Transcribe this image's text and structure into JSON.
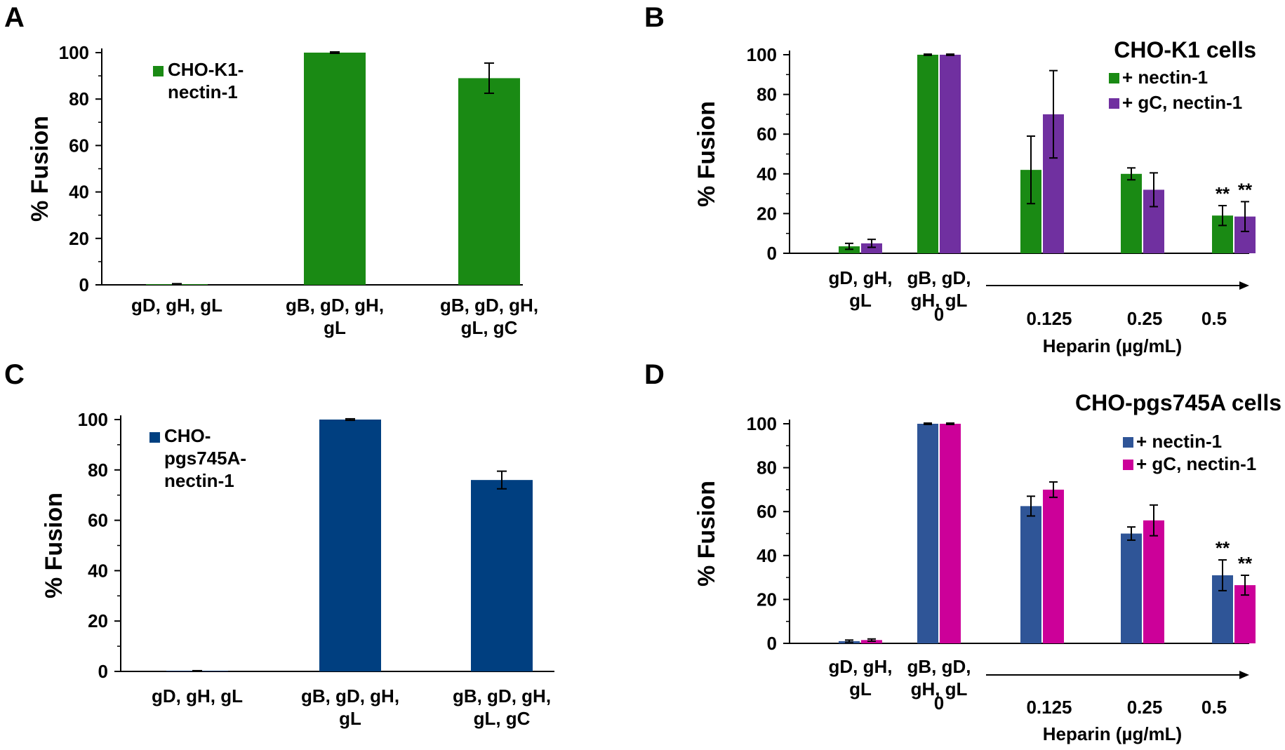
{
  "colors": {
    "green": "#1a8a14",
    "purple": "#7030a0",
    "navy": "#003f80",
    "blue": "#2f5597",
    "magenta": "#cc0099",
    "axis": "#000000"
  },
  "chart_data": [
    {
      "id": "A",
      "panel_label": "A",
      "type": "bar",
      "ylabel": "% Fusion",
      "ylim": [
        0,
        100
      ],
      "yticks": [
        "0",
        "20",
        "40",
        "60",
        "80",
        "100"
      ],
      "categories": [
        [
          "gD, gH, gL"
        ],
        [
          "gB, gD, gH,",
          "gL"
        ],
        [
          "gB, gD, gH,",
          "gL, gC"
        ]
      ],
      "series": [
        {
          "name": "CHO-K1-nectin-1",
          "legend_lines": [
            "CHO-K1-",
            "nectin-1"
          ],
          "color": "#1a8a14",
          "values": [
            0.3,
            100,
            89
          ],
          "errors": [
            0.2,
            0.3,
            6.5
          ]
        }
      ]
    },
    {
      "id": "B",
      "panel_label": "B",
      "type": "bar",
      "title": "CHO-K1 cells",
      "ylabel": "% Fusion",
      "ylim": [
        0,
        100
      ],
      "yticks": [
        "0",
        "20",
        "40",
        "60",
        "80",
        "100"
      ],
      "categories": [
        [
          "gD, gH,",
          "gL"
        ],
        [
          "gB, gD,",
          "gH, gL"
        ],
        [
          ""
        ],
        [
          ""
        ],
        [
          ""
        ]
      ],
      "dose_labels": [
        "0",
        "0.125",
        "0.25",
        "0.5"
      ],
      "xlabel": "Heparin (µg/mL)",
      "series": [
        {
          "name": "+ nectin-1",
          "color": "#1a8a14",
          "values": [
            3.5,
            100,
            42,
            40,
            19
          ],
          "errors": [
            1.5,
            0.3,
            17,
            3,
            5
          ]
        },
        {
          "name": "+ gC, nectin-1",
          "color": "#7030a0",
          "values": [
            5,
            100,
            70,
            32,
            18.5
          ],
          "errors": [
            2,
            0.3,
            22,
            8.5,
            7.5
          ]
        }
      ],
      "annotations": [
        "**",
        "**"
      ]
    },
    {
      "id": "C",
      "panel_label": "C",
      "type": "bar",
      "ylabel": "% Fusion",
      "ylim": [
        0,
        100
      ],
      "yticks": [
        "0",
        "20",
        "40",
        "60",
        "80",
        "100"
      ],
      "categories": [
        [
          "gD, gH, gL"
        ],
        [
          "gB, gD, gH,",
          "gL"
        ],
        [
          "gB, gD, gH,",
          "gL, gC"
        ]
      ],
      "series": [
        {
          "name": "CHO-pgs745A-nectin-1",
          "legend_lines": [
            "CHO-",
            "pgs745A-",
            "nectin-1"
          ],
          "color": "#003f80",
          "values": [
            0.2,
            100,
            76
          ],
          "errors": [
            0.1,
            0.3,
            3.5
          ]
        }
      ]
    },
    {
      "id": "D",
      "panel_label": "D",
      "type": "bar",
      "title": "CHO-pgs745A cells",
      "ylabel": "% Fusion",
      "ylim": [
        0,
        100
      ],
      "yticks": [
        "0",
        "20",
        "40",
        "60",
        "80",
        "100"
      ],
      "categories": [
        [
          "gD, gH,",
          "gL"
        ],
        [
          "gB, gD,",
          "gH, gL"
        ],
        [
          ""
        ],
        [
          ""
        ],
        [
          ""
        ]
      ],
      "dose_labels": [
        "0",
        "0.125",
        "0.25",
        "0.5"
      ],
      "xlabel": "Heparin (µg/mL)",
      "series": [
        {
          "name": "+ nectin-1",
          "color": "#2f5597",
          "values": [
            1,
            100,
            62.5,
            50,
            31
          ],
          "errors": [
            0.5,
            0.3,
            4.5,
            3,
            7
          ]
        },
        {
          "name": "+ gC, nectin-1",
          "color": "#cc0099",
          "values": [
            1.5,
            100,
            70,
            56,
            26.5
          ],
          "errors": [
            0.5,
            0.3,
            3.5,
            7,
            4.5
          ]
        }
      ],
      "annotations": [
        "**",
        "**"
      ]
    }
  ]
}
